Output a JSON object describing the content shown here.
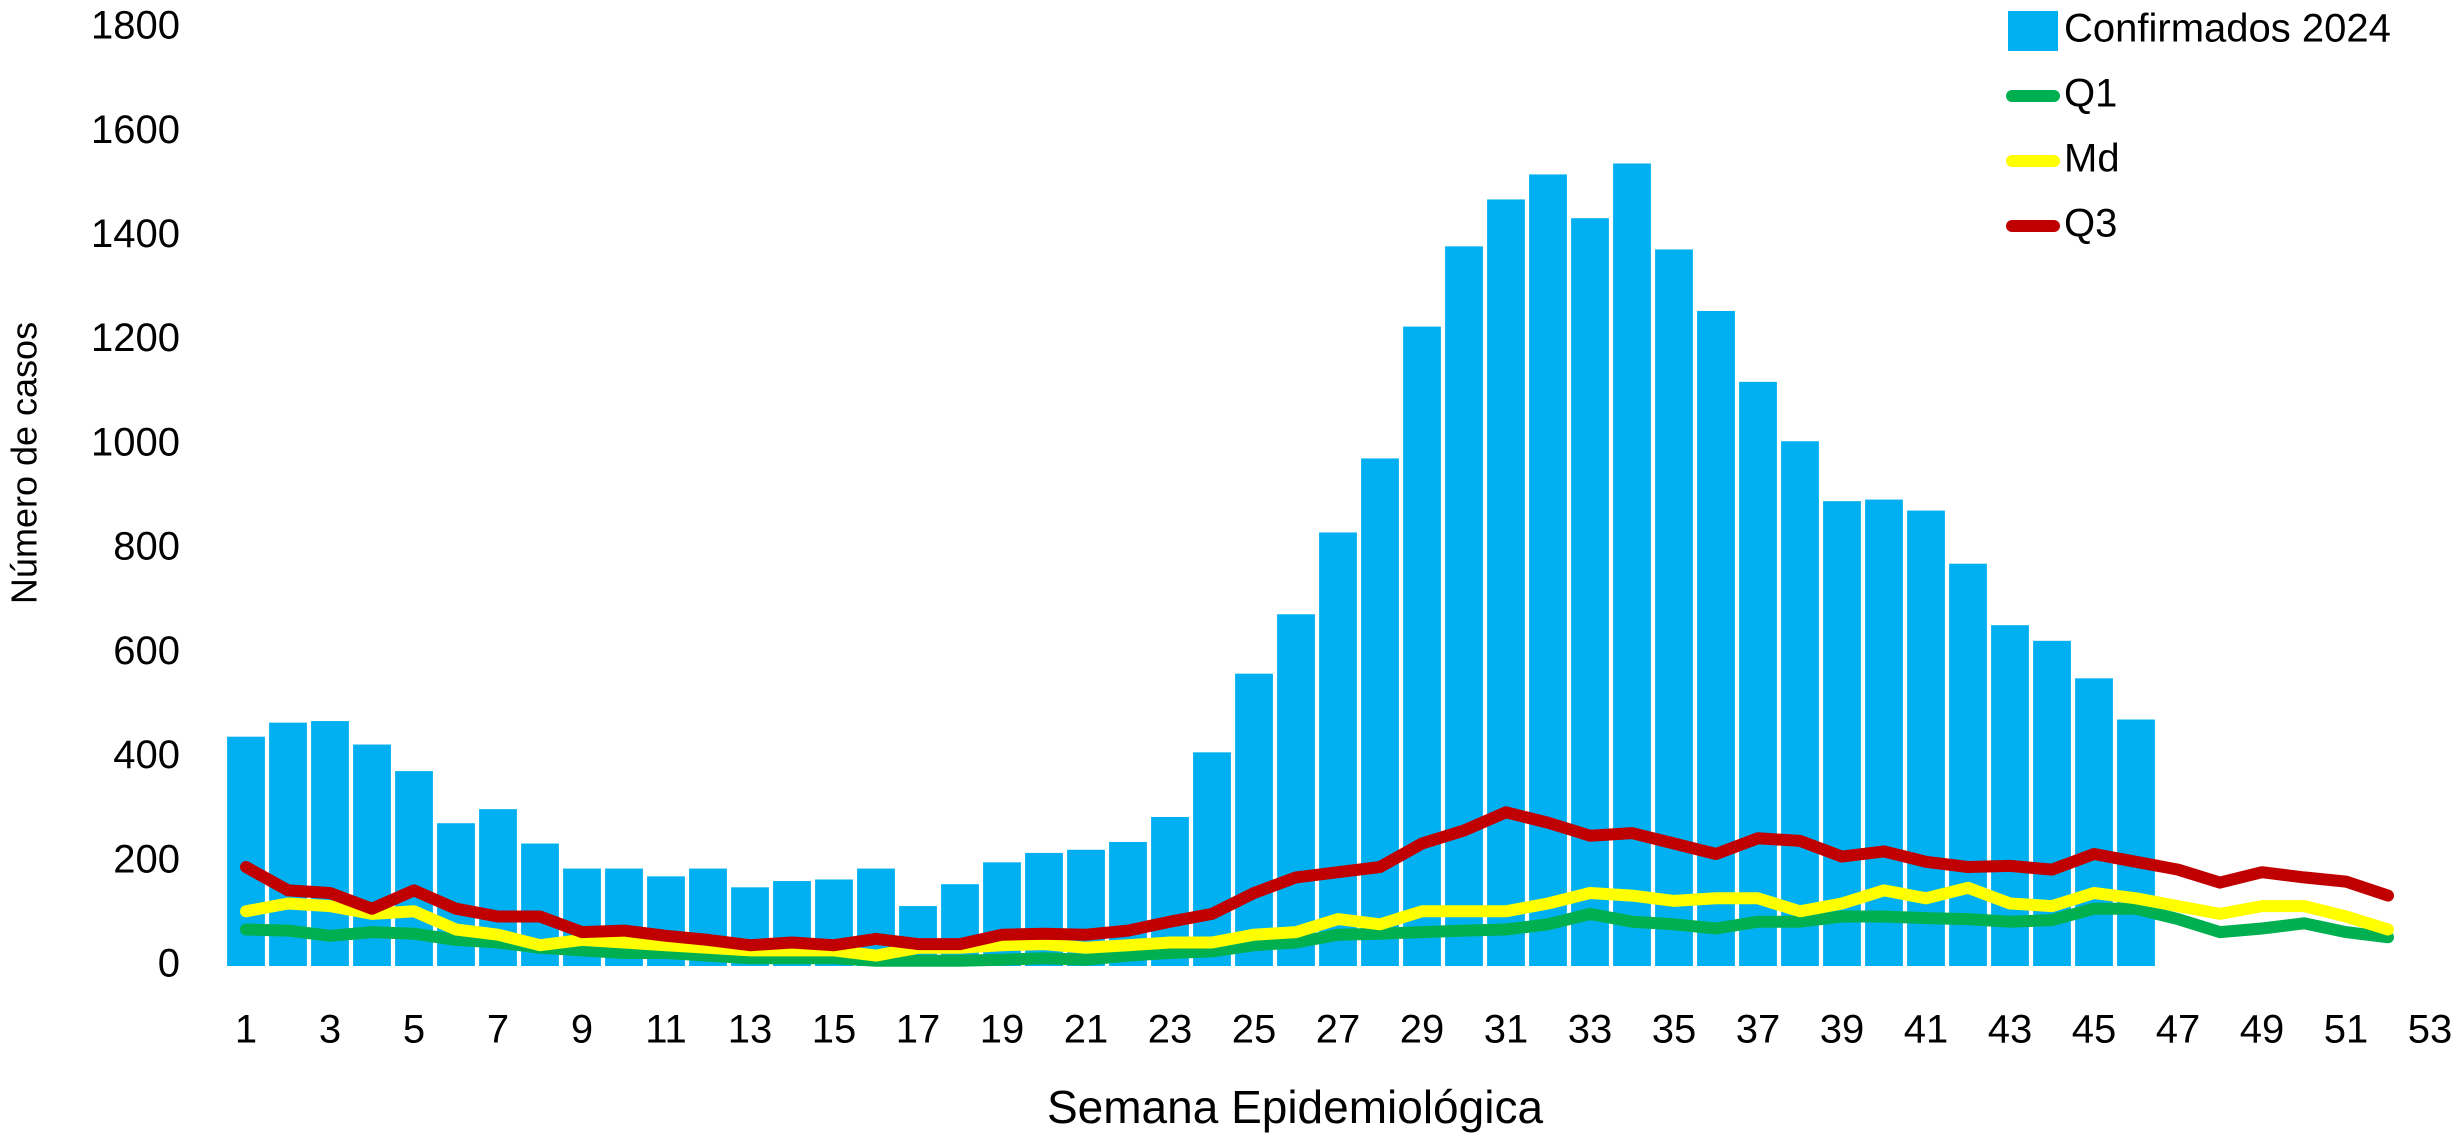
{
  "chart_data": {
    "type": "bar",
    "xlabel": "Semana Epidemiológica",
    "ylabel": "Número de casos",
    "x": [
      1,
      2,
      3,
      4,
      5,
      6,
      7,
      8,
      9,
      10,
      11,
      12,
      13,
      14,
      15,
      16,
      17,
      18,
      19,
      20,
      21,
      22,
      23,
      24,
      25,
      26,
      27,
      28,
      29,
      30,
      31,
      32,
      33,
      34,
      35,
      36,
      37,
      38,
      39,
      40,
      41,
      42,
      43,
      44,
      45,
      46,
      47,
      48,
      49,
      50,
      51,
      52
    ],
    "xlim": [
      0.5,
      53.5
    ],
    "xticks": [
      1,
      3,
      5,
      7,
      9,
      11,
      13,
      15,
      17,
      19,
      21,
      23,
      25,
      27,
      29,
      31,
      33,
      35,
      37,
      39,
      41,
      43,
      45,
      47,
      49,
      51,
      53
    ],
    "ylim": [
      0,
      1800
    ],
    "yticks": [
      0,
      200,
      400,
      600,
      800,
      1000,
      1200,
      1400,
      1600,
      1800
    ],
    "grid": false,
    "legend": "top-right",
    "series": [
      {
        "name": "Confirmados 2024",
        "type": "bar",
        "color": "#00b0f0",
        "values": [
          440,
          467,
          470,
          425,
          374,
          274,
          301,
          235,
          187,
          187,
          172,
          187,
          151,
          163,
          166,
          187,
          115,
          157,
          199,
          217,
          223,
          238,
          286,
          410,
          561,
          675,
          832,
          974,
          1227,
          1381,
          1471,
          1519,
          1435,
          1540,
          1375,
          1257,
          1121,
          1007,
          892,
          895,
          874,
          772,
          654,
          624,
          552,
          473,
          null,
          null,
          null,
          null,
          null,
          null
        ]
      },
      {
        "name": "Q1",
        "type": "line",
        "color": "#00b050",
        "values": [
          70,
          68,
          58,
          65,
          62,
          50,
          45,
          35,
          30,
          25,
          25,
          20,
          15,
          15,
          15,
          10,
          10,
          10,
          12,
          15,
          12,
          20,
          25,
          28,
          40,
          45,
          60,
          62,
          65,
          68,
          70,
          80,
          100,
          85,
          80,
          72,
          85,
          85,
          95,
          95,
          92,
          90,
          85,
          88,
          110,
          110,
          90,
          65,
          72,
          82,
          65,
          55
        ]
      },
      {
        "name": "Md",
        "type": "line",
        "color": "#ffff00",
        "values": [
          105,
          120,
          115,
          100,
          105,
          70,
          60,
          40,
          50,
          45,
          40,
          35,
          30,
          30,
          30,
          20,
          35,
          35,
          40,
          42,
          35,
          40,
          45,
          45,
          60,
          65,
          90,
          80,
          105,
          105,
          105,
          120,
          140,
          135,
          125,
          130,
          130,
          105,
          120,
          145,
          130,
          150,
          120,
          115,
          140,
          130,
          115,
          100,
          115,
          115,
          95,
          70
        ]
      },
      {
        "name": "Q3",
        "type": "line",
        "color": "#c00000",
        "values": [
          190,
          145,
          140,
          110,
          145,
          110,
          95,
          95,
          65,
          68,
          58,
          50,
          40,
          45,
          40,
          52,
          42,
          42,
          60,
          62,
          60,
          68,
          85,
          100,
          140,
          170,
          180,
          190,
          235,
          260,
          295,
          275,
          250,
          255,
          235,
          215,
          245,
          240,
          210,
          220,
          200,
          190,
          192,
          185,
          215,
          200,
          185,
          160,
          180,
          170,
          162,
          135
        ]
      }
    ]
  }
}
